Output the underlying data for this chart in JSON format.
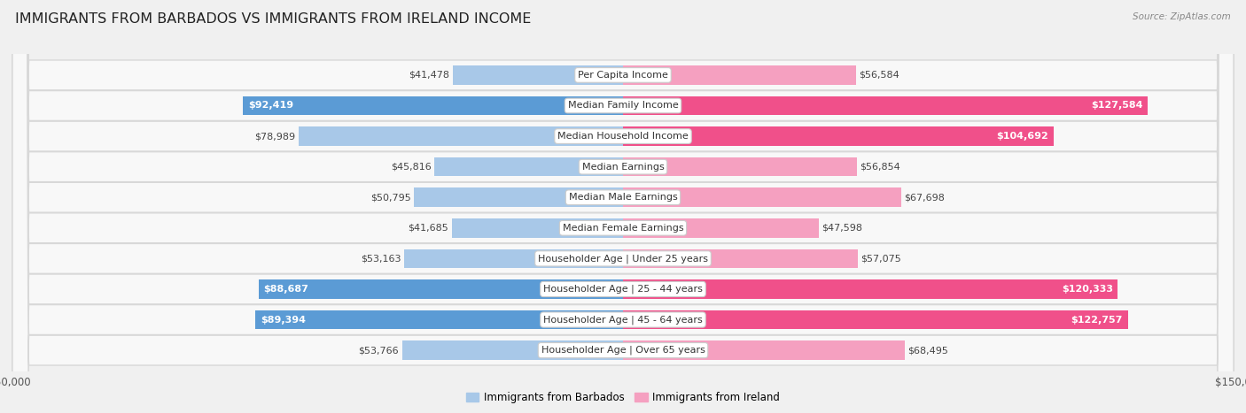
{
  "title": "IMMIGRANTS FROM BARBADOS VS IMMIGRANTS FROM IRELAND INCOME",
  "source": "Source: ZipAtlas.com",
  "categories": [
    "Per Capita Income",
    "Median Family Income",
    "Median Household Income",
    "Median Earnings",
    "Median Male Earnings",
    "Median Female Earnings",
    "Householder Age | Under 25 years",
    "Householder Age | 25 - 44 years",
    "Householder Age | 45 - 64 years",
    "Householder Age | Over 65 years"
  ],
  "barbados_values": [
    41478,
    92419,
    78989,
    45816,
    50795,
    41685,
    53163,
    88687,
    89394,
    53766
  ],
  "ireland_values": [
    56584,
    127584,
    104692,
    56854,
    67698,
    47598,
    57075,
    120333,
    122757,
    68495
  ],
  "barbados_labels": [
    "$41,478",
    "$92,419",
    "$78,989",
    "$45,816",
    "$50,795",
    "$41,685",
    "$53,163",
    "$88,687",
    "$89,394",
    "$53,766"
  ],
  "ireland_labels": [
    "$56,584",
    "$127,584",
    "$104,692",
    "$56,854",
    "$67,698",
    "$47,598",
    "$57,075",
    "$120,333",
    "$122,757",
    "$68,495"
  ],
  "max_value": 150000,
  "barbados_color_light": "#a8c8e8",
  "barbados_color_dark": "#5b9bd5",
  "ireland_color_light": "#f5a0c0",
  "ireland_color_dark": "#f0508a",
  "background_color": "#f0f0f0",
  "row_bg_color": "#f8f8f8",
  "row_border_color": "#d8d8d8",
  "bar_height": 0.62,
  "title_fontsize": 11.5,
  "label_fontsize": 8.0,
  "category_fontsize": 8.0,
  "dark_threshold": 0.58
}
